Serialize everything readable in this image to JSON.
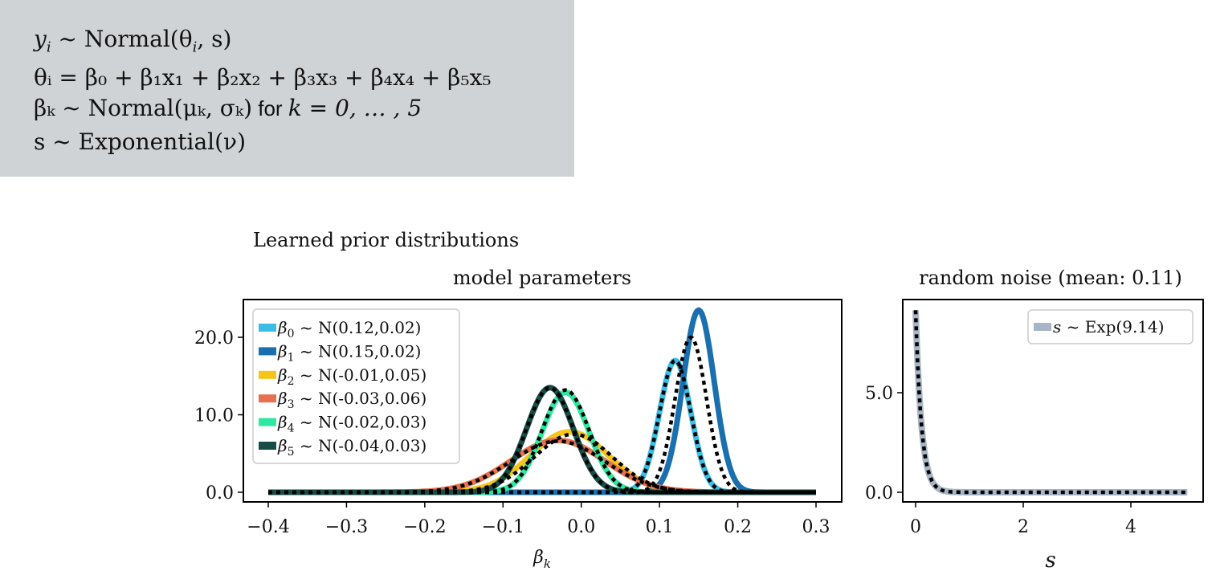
{
  "equations": {
    "line1": {
      "lhs": "y",
      "sub": "i",
      "rest": " ~ Normal(θ",
      "sub2": "i",
      "tail": ", s)"
    },
    "line2_text": "θᵢ = β₀ + β₁x₁ + β₂x₂ + β₃x₃ + β₄x₄ + β₅x₅",
    "line3_a": "βₖ ~ Normal(μₖ, σₖ)",
    "line3_b": " for ",
    "line3_c": "k = 0, … , 5",
    "line4_text": "s ~ Exponential(ν)"
  },
  "figure_title": "Learned prior distributions",
  "chart_data": [
    {
      "type": "line",
      "title": "model parameters",
      "xlabel": "β_k",
      "ylabel": "",
      "xlim": [
        -0.4,
        0.3
      ],
      "ylim": [
        0.0,
        24.0
      ],
      "xticks": [
        "−0.4",
        "−0.3",
        "−0.2",
        "−0.1",
        "0.0",
        "0.1",
        "0.2",
        "0.3"
      ],
      "xtick_values": [
        -0.4,
        -0.3,
        -0.2,
        -0.1,
        0.0,
        0.1,
        0.2,
        0.3
      ],
      "yticks": [
        "0.0",
        "10.0",
        "20.0"
      ],
      "ytick_values": [
        0,
        10,
        20
      ],
      "legend_position": "top-left",
      "series": [
        {
          "name": "β0 ~ N(0.12,0.02)",
          "label_sym": "β",
          "label_sub": "0",
          "label_rest": " ~ N(0.12,0.02)",
          "mu": 0.12,
          "sigma": 0.02,
          "color": "#3bbde6",
          "peak": 17.0
        },
        {
          "name": "β1 ~ N(0.15,0.02)",
          "label_sym": "β",
          "label_sub": "1",
          "label_rest": " ~ N(0.15,0.02)",
          "mu": 0.15,
          "sigma": 0.02,
          "color": "#1a6fae",
          "peak": 23.5
        },
        {
          "name": "β2 ~ N(-0.01,0.05)",
          "label_sym": "β",
          "label_sub": "2",
          "label_rest": " ~ N(-0.01,0.05)",
          "mu": -0.015,
          "sigma": 0.05,
          "color": "#f5c518",
          "peak": 7.8
        },
        {
          "name": "β3 ~ N(-0.03,0.06)",
          "label_sym": "β",
          "label_sub": "3",
          "label_rest": " ~ N(-0.03,0.06)",
          "mu": -0.03,
          "sigma": 0.06,
          "color": "#e8704e",
          "peak": 6.7
        },
        {
          "name": "β4 ~ N(-0.02,0.03)",
          "label_sym": "β",
          "label_sub": "4",
          "label_rest": " ~ N(-0.02,0.03)",
          "mu": -0.02,
          "sigma": 0.03,
          "color": "#2ee8a0",
          "peak": 12.9
        },
        {
          "name": "β5 ~ N(-0.04,0.03)",
          "label_sym": "β",
          "label_sub": "5",
          "label_rest": " ~ N(-0.04,0.03)",
          "mu": -0.04,
          "sigma": 0.03,
          "color": "#174d47",
          "peak": 13.5
        }
      ],
      "dotted_overlays": [
        {
          "mu": 0.12,
          "sigma": 0.02,
          "peak": 17.0
        },
        {
          "mu": 0.14,
          "sigma": 0.02,
          "peak": 20.0
        },
        {
          "mu": -0.01,
          "sigma": 0.05,
          "peak": 7.5
        },
        {
          "mu": -0.03,
          "sigma": 0.06,
          "peak": 6.6
        },
        {
          "mu": -0.02,
          "sigma": 0.03,
          "peak": 13.2
        },
        {
          "mu": -0.04,
          "sigma": 0.03,
          "peak": 13.5
        }
      ]
    },
    {
      "type": "line",
      "title": "random noise (mean: 0.11)",
      "xlabel": "s",
      "ylabel": "",
      "xlim": [
        -0.1,
        5.1
      ],
      "ylim": [
        0.0,
        9.3
      ],
      "xticks": [
        "0",
        "2",
        "4"
      ],
      "xtick_values": [
        0,
        2,
        4
      ],
      "yticks": [
        "0.0",
        "5.0"
      ],
      "ytick_values": [
        0,
        5
      ],
      "legend_position": "top-right",
      "series": [
        {
          "name": "s ~ Exp(9.14)",
          "label_sym": "s",
          "label_rest": " ~ Exp(9.14)",
          "rate": 9.14,
          "color": "#a7b6c6"
        }
      ],
      "dotted_overlay": {
        "rate": 9.14
      }
    }
  ]
}
